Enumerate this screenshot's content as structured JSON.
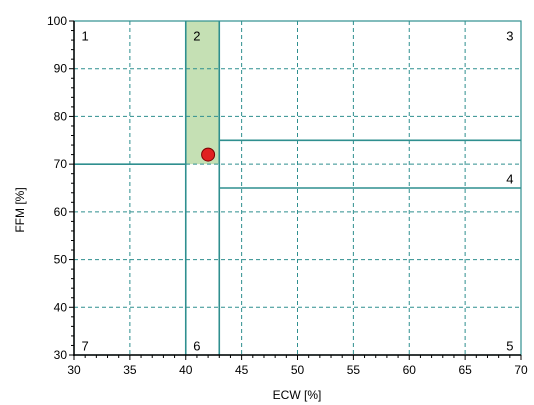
{
  "chart_data": {
    "type": "scatter",
    "xlabel": "ECW [%]",
    "ylabel": "FFM [%]",
    "xlim": [
      30,
      70
    ],
    "ylim": [
      30,
      100
    ],
    "x_ticks": [
      30,
      35,
      40,
      45,
      50,
      55,
      60,
      65,
      70
    ],
    "y_ticks": [
      30,
      40,
      50,
      60,
      70,
      80,
      90,
      100
    ],
    "grid": true,
    "grid_style": "dashed",
    "colors": {
      "grid": "#2f8f8f",
      "zone_line": "#2f8f8f",
      "highlight_fill": "#c5e0b4",
      "point_fill": "#e02020",
      "point_stroke": "#7a0000"
    },
    "highlight_zone": {
      "x_range": [
        40,
        43
      ],
      "y_range": [
        70,
        100
      ]
    },
    "zone_boundaries": [
      {
        "orientation": "horizontal",
        "y": 70,
        "x_range": [
          30,
          40
        ]
      },
      {
        "orientation": "vertical",
        "x": 40,
        "y_range": [
          30,
          100
        ]
      },
      {
        "orientation": "vertical",
        "x": 43,
        "y_range": [
          30,
          100
        ]
      },
      {
        "orientation": "horizontal",
        "y": 75,
        "x_range": [
          43,
          70
        ]
      },
      {
        "orientation": "horizontal",
        "y": 65,
        "x_range": [
          43,
          70
        ]
      }
    ],
    "zone_labels": [
      {
        "text": "1",
        "x": 31,
        "y": 97
      },
      {
        "text": "2",
        "x": 41,
        "y": 97
      },
      {
        "text": "3",
        "x": 69,
        "y": 97
      },
      {
        "text": "4",
        "x": 69,
        "y": 67
      },
      {
        "text": "5",
        "x": 69,
        "y": 32
      },
      {
        "text": "6",
        "x": 41,
        "y": 32
      },
      {
        "text": "7",
        "x": 31,
        "y": 32
      }
    ],
    "points": [
      {
        "x": 42,
        "y": 72
      }
    ]
  }
}
